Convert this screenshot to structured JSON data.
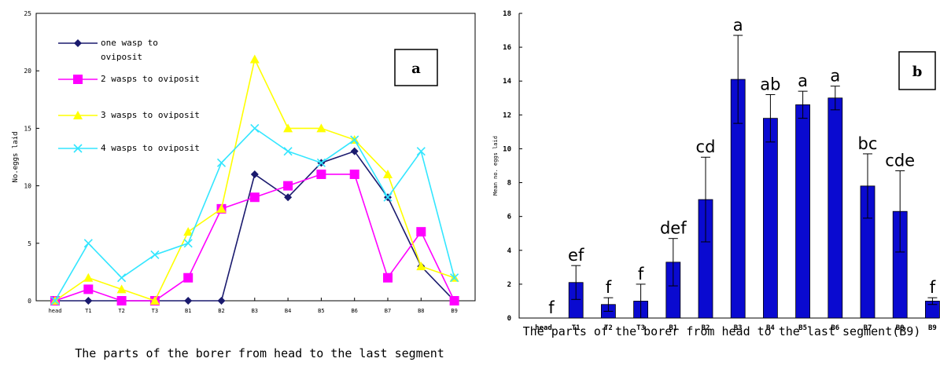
{
  "chart_data": [
    {
      "type": "line",
      "panel_label": "a",
      "ylabel": "No.eggs laid",
      "xlabel": "The parts of the borer from head to the last segment",
      "categories": [
        "head",
        "T1",
        "T2",
        "T3",
        "B1",
        "B2",
        "B3",
        "B4",
        "B5",
        "B6",
        "B7",
        "B8",
        "B9"
      ],
      "ylim": [
        0,
        25
      ],
      "yticks": [
        "0",
        "5",
        "10",
        "15",
        "20",
        "25"
      ],
      "legend_position": "top-left",
      "grid": false,
      "series": [
        {
          "name": "one wasp to oviposit",
          "color": "#1a1a6e",
          "marker": "diamond",
          "values": [
            0,
            0,
            0,
            0,
            0,
            0,
            11,
            9,
            12,
            13,
            9,
            3,
            0
          ]
        },
        {
          "name": "2 wasps to oviposit",
          "color": "#ff00ff",
          "marker": "square",
          "values": [
            0,
            1,
            0,
            0,
            2,
            8,
            9,
            10,
            11,
            11,
            2,
            6,
            0
          ]
        },
        {
          "name": "3 wasps to oviposit",
          "color": "#ffff00",
          "marker": "triangle",
          "values": [
            0,
            2,
            1,
            0,
            6,
            8,
            21,
            15,
            15,
            14,
            11,
            3,
            2
          ]
        },
        {
          "name": "4 wasps to oviposit",
          "color": "#33e6ff",
          "marker": "x",
          "values": [
            0,
            5,
            2,
            4,
            5,
            12,
            15,
            13,
            12,
            14,
            9,
            13,
            2
          ]
        }
      ]
    },
    {
      "type": "bar",
      "panel_label": "b",
      "ylabel": "Mean no. eggs laid",
      "xlabel": "The parts of the borer from head to the last segment(B9)",
      "categories": [
        "head",
        "T1",
        "T2",
        "T3",
        "B1",
        "B2",
        "B3",
        "B4",
        "B5",
        "B6",
        "B7",
        "B8",
        "B9"
      ],
      "ylim": [
        0,
        18
      ],
      "yticks": [
        "0",
        "2",
        "4",
        "6",
        "8",
        "10",
        "12",
        "14",
        "16",
        "18"
      ],
      "bar_color": "#0a0ad0",
      "grid": false,
      "values": [
        0,
        2.1,
        0.8,
        1.0,
        3.3,
        7.0,
        14.1,
        11.8,
        12.6,
        13.0,
        7.8,
        6.3,
        1.0
      ],
      "errors": [
        0,
        1.0,
        0.4,
        1.0,
        1.4,
        2.5,
        2.6,
        1.4,
        0.8,
        0.7,
        1.9,
        2.4,
        0.2
      ],
      "letters": [
        "f",
        "ef",
        "f",
        "f",
        "def",
        "cd",
        "a",
        "ab",
        "a",
        "a",
        "bc",
        "cde",
        "f"
      ]
    }
  ]
}
